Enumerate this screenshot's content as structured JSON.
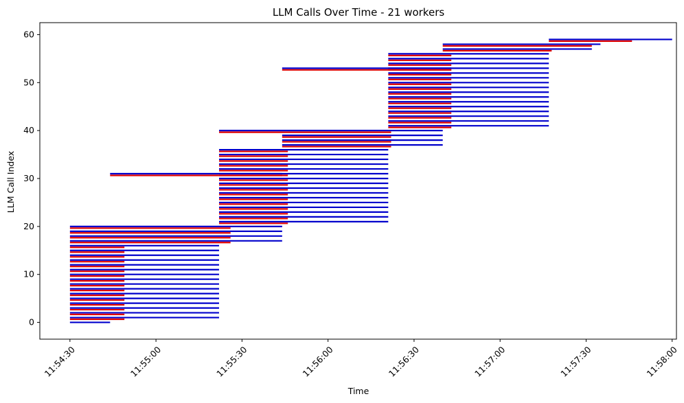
{
  "chart_data": {
    "type": "timeline",
    "title": "LLM Calls Over Time - 21 workers",
    "xlabel": "Time",
    "ylabel": "LLM Call Index",
    "x_ticks": [
      "11:54:30",
      "11:55:00",
      "11:55:30",
      "11:56:00",
      "11:56:30",
      "11:57:00",
      "11:57:30",
      "11:58:00"
    ],
    "y_ticks": [
      0,
      10,
      20,
      30,
      40,
      50,
      60
    ],
    "xlim_seconds_from_11_54_30": [
      -10.5,
      1.5
    ],
    "ylim": [
      -3.5,
      62.5
    ],
    "grid": false,
    "colors": {
      "blue": "#0000cc",
      "red": "#dd0000"
    },
    "series": [
      {
        "name": "blue",
        "start": "11:54:30",
        "end": "11:54:44",
        "indices": [
          0
        ]
      },
      {
        "name": "blue",
        "start": "11:54:30",
        "end": "11:55:22",
        "indices": [
          1,
          2,
          3,
          4,
          5,
          6,
          7,
          8,
          9,
          10,
          11,
          12,
          13,
          14,
          15,
          16
        ]
      },
      {
        "name": "red",
        "start": "11:54:30",
        "end": "11:54:49",
        "indices": [
          1,
          2,
          3,
          4,
          5,
          6,
          7,
          8,
          9,
          10,
          11,
          12,
          13,
          14,
          15,
          16
        ]
      },
      {
        "name": "blue",
        "start": "11:54:30",
        "end": "11:55:44",
        "indices": [
          17,
          18,
          19,
          20
        ]
      },
      {
        "name": "red",
        "start": "11:54:30",
        "end": "11:55:26",
        "indices": [
          17,
          18,
          19,
          20
        ]
      },
      {
        "name": "blue",
        "start": "11:55:22",
        "end": "11:56:21",
        "indices": [
          21,
          22,
          23,
          24,
          25,
          26,
          27,
          28,
          29,
          30,
          31,
          32,
          33,
          34,
          35,
          36
        ]
      },
      {
        "name": "red",
        "start": "11:55:22",
        "end": "11:55:46",
        "indices": [
          21,
          22,
          23,
          24,
          25,
          26,
          27,
          28,
          29,
          30,
          31,
          32,
          33,
          34,
          35,
          36
        ]
      },
      {
        "name": "blue",
        "start": "11:54:44",
        "end": "11:55:44",
        "indices": [
          31
        ]
      },
      {
        "name": "red",
        "start": "11:54:44",
        "end": "11:55:44",
        "indices": [
          31
        ]
      },
      {
        "name": "blue",
        "start": "11:55:44",
        "end": "11:56:40",
        "indices": [
          37,
          38,
          39
        ]
      },
      {
        "name": "red",
        "start": "11:55:44",
        "end": "11:56:22",
        "indices": [
          37,
          38,
          39
        ]
      },
      {
        "name": "blue",
        "start": "11:55:22",
        "end": "11:56:40",
        "indices": [
          40
        ]
      },
      {
        "name": "red",
        "start": "11:55:22",
        "end": "11:56:22",
        "indices": [
          40
        ]
      },
      {
        "name": "blue",
        "start": "11:56:21",
        "end": "11:57:17",
        "indices": [
          41,
          42,
          43,
          44,
          45,
          46,
          47,
          48,
          49,
          50,
          51,
          52,
          53,
          54,
          55,
          56
        ]
      },
      {
        "name": "red",
        "start": "11:56:21",
        "end": "11:56:43",
        "indices": [
          41,
          42,
          43,
          44,
          45,
          46,
          47,
          48,
          49,
          50,
          51,
          52,
          53,
          54,
          55,
          56
        ]
      },
      {
        "name": "blue",
        "start": "11:55:44",
        "end": "11:56:43",
        "indices": [
          53
        ]
      },
      {
        "name": "red",
        "start": "11:55:44",
        "end": "11:56:43",
        "indices": [
          53
        ]
      },
      {
        "name": "blue",
        "start": "11:56:40",
        "end": "11:57:32",
        "indices": [
          57
        ]
      },
      {
        "name": "red",
        "start": "11:56:40",
        "end": "11:57:18",
        "indices": [
          57
        ]
      },
      {
        "name": "blue",
        "start": "11:56:40",
        "end": "11:57:35",
        "indices": [
          58
        ]
      },
      {
        "name": "red",
        "start": "11:56:40",
        "end": "11:57:32",
        "indices": [
          58
        ]
      },
      {
        "name": "blue",
        "start": "11:57:17",
        "end": "11:58:00",
        "indices": [
          59
        ]
      },
      {
        "name": "red",
        "start": "11:57:17",
        "end": "11:57:46",
        "indices": [
          59
        ]
      }
    ]
  }
}
